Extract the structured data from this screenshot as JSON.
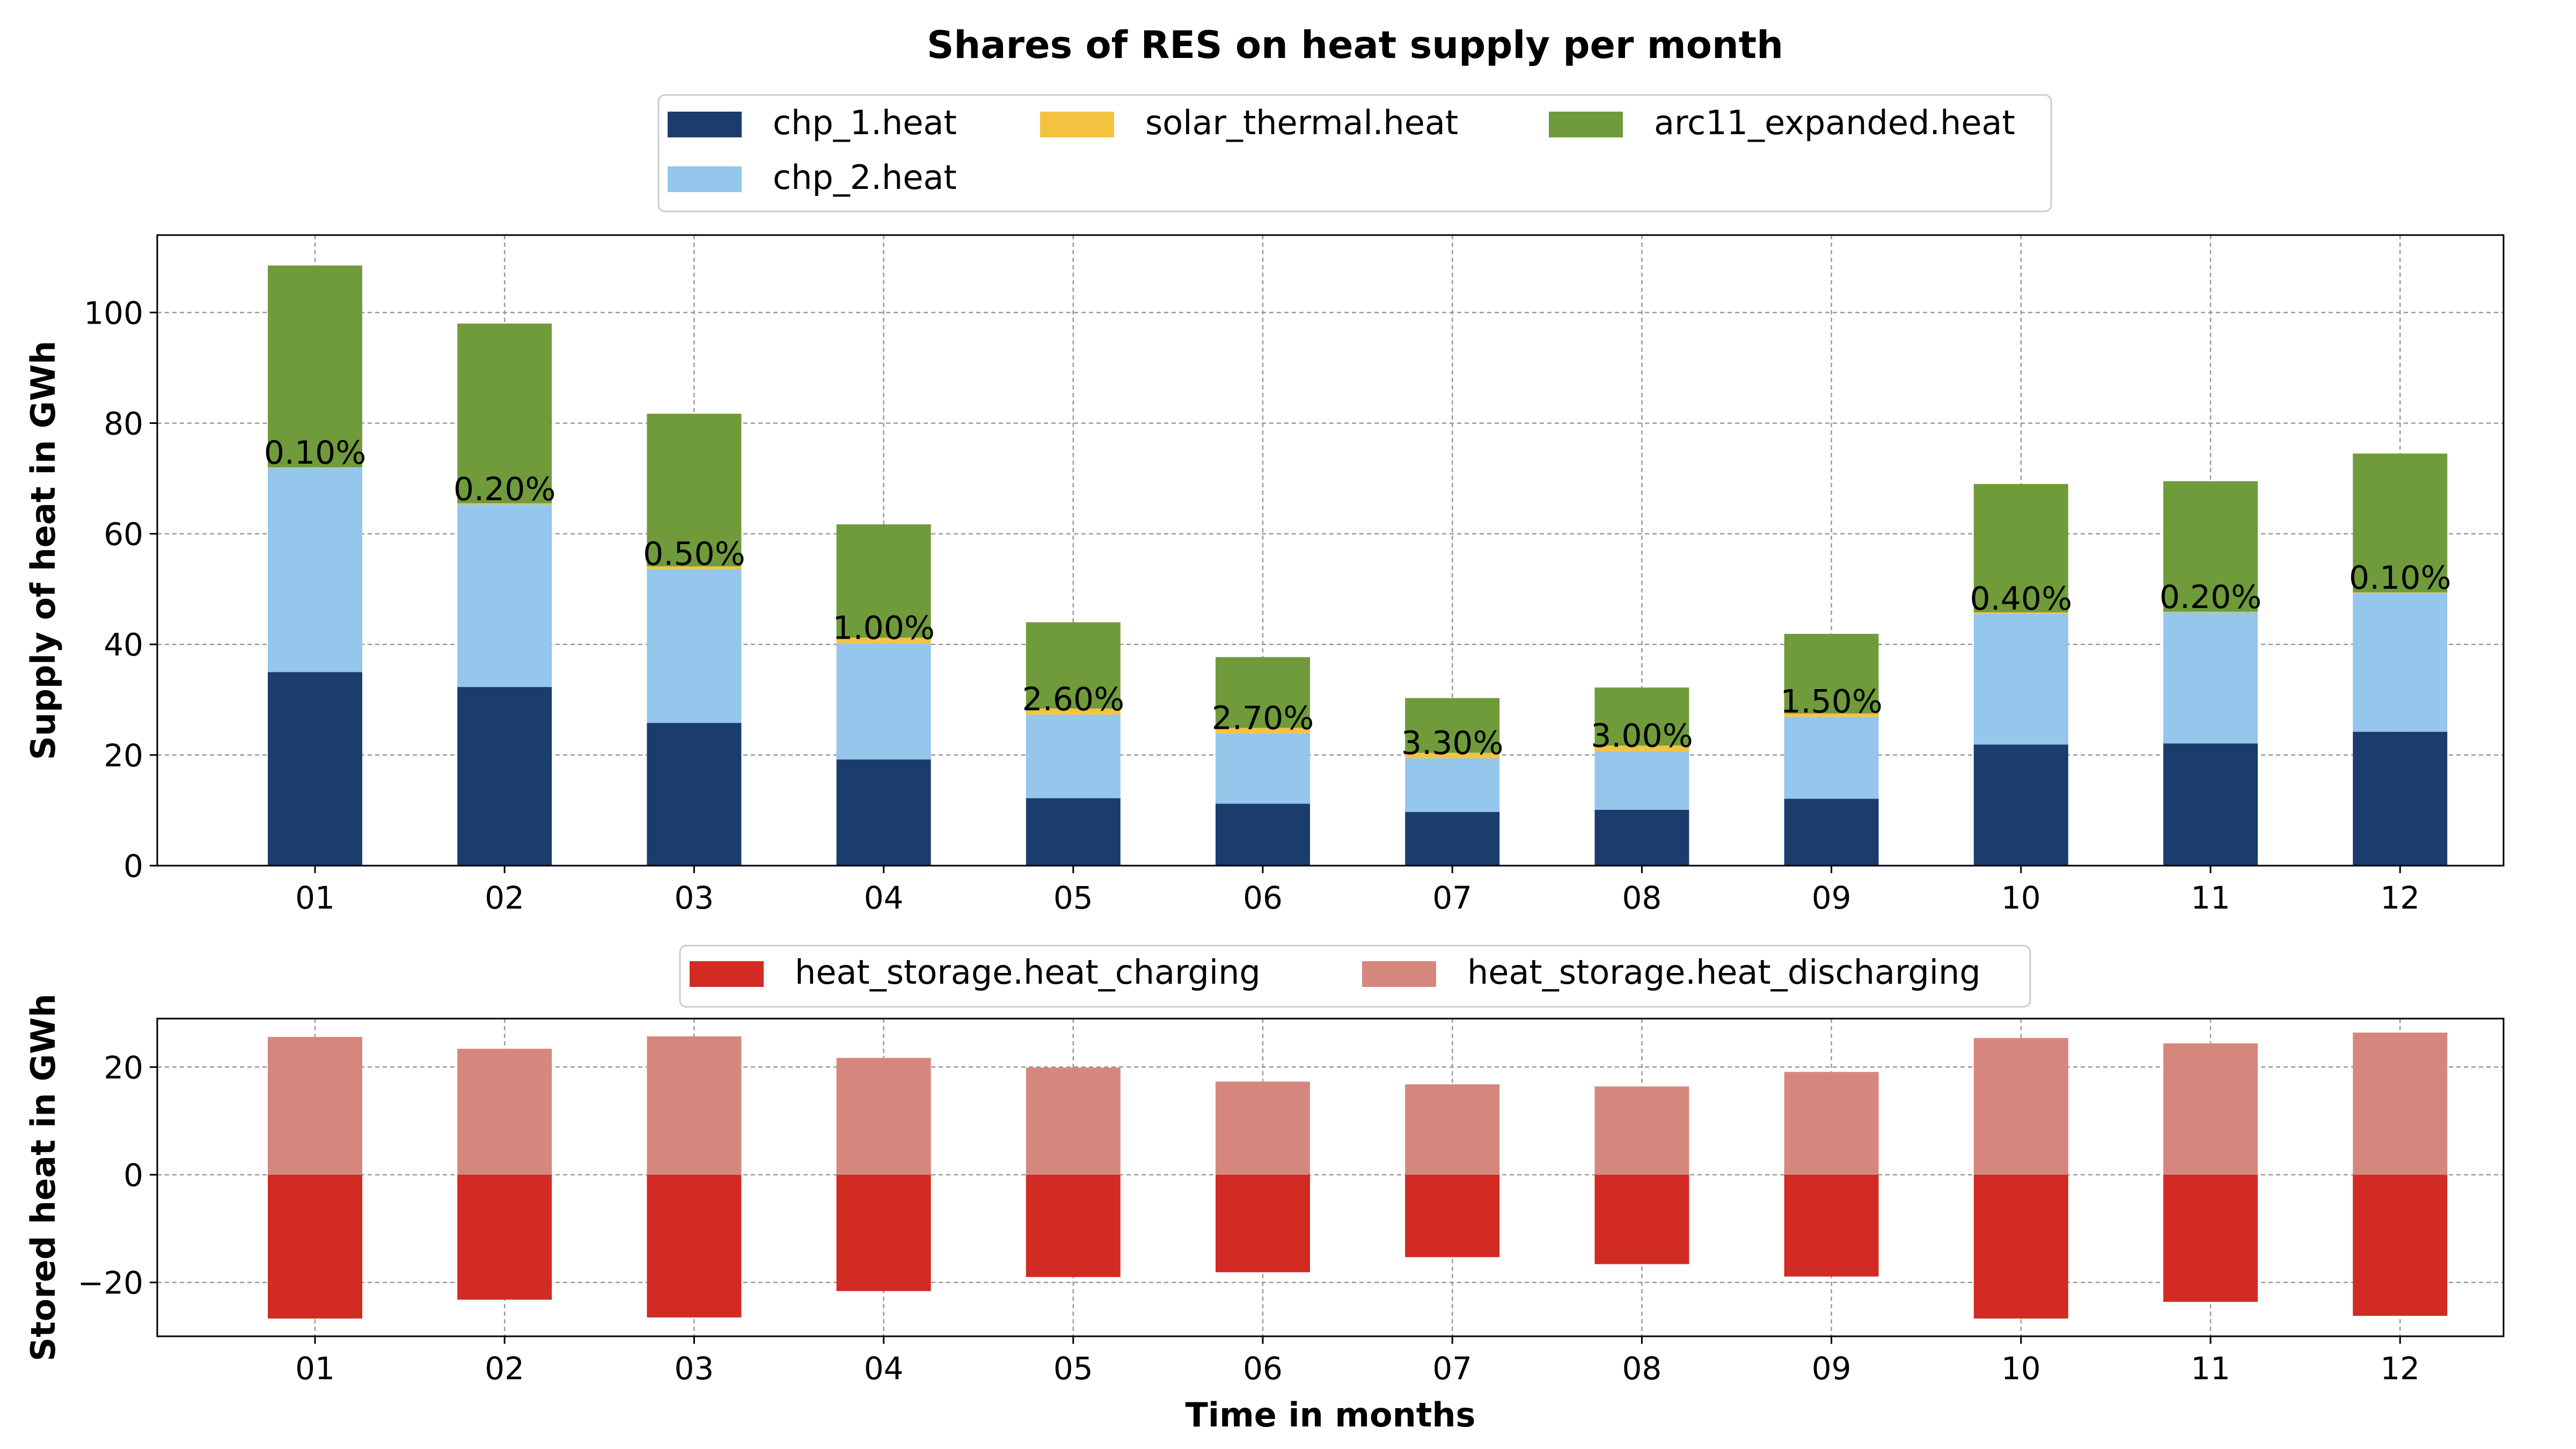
{
  "title": "Shares of RES on heat supply per month",
  "chart_data": [
    {
      "type": "bar",
      "stacked": true,
      "categories": [
        "01",
        "02",
        "03",
        "04",
        "05",
        "06",
        "07",
        "08",
        "09",
        "10",
        "11",
        "12"
      ],
      "series": [
        {
          "name": "chp_1.heat",
          "color": "#1a3d6e",
          "values": [
            35.0,
            32.3,
            25.8,
            19.2,
            12.2,
            11.2,
            9.7,
            10.1,
            12.1,
            21.9,
            22.1,
            24.2
          ]
        },
        {
          "name": "chp_2.heat",
          "color": "#95c6ec",
          "values": [
            36.9,
            33.0,
            27.8,
            21.0,
            15.1,
            12.7,
            9.7,
            10.6,
            14.8,
            23.6,
            23.7,
            25.1
          ]
        },
        {
          "name": "solar_thermal.heat",
          "color": "#f5c342",
          "values": [
            0.1,
            0.2,
            0.5,
            1.0,
            1.1,
            1.0,
            1.0,
            1.0,
            0.6,
            0.3,
            0.1,
            0.1
          ]
        },
        {
          "name": "arc11_expanded.heat",
          "color": "#709b3b",
          "values": [
            36.5,
            32.5,
            27.6,
            20.5,
            15.6,
            12.8,
            9.9,
            10.5,
            14.4,
            23.2,
            23.6,
            25.1
          ]
        }
      ],
      "bar_labels": [
        "0.10%",
        "0.20%",
        "0.50%",
        "1.00%",
        "2.60%",
        "2.70%",
        "3.30%",
        "3.00%",
        "1.50%",
        "0.40%",
        "0.20%",
        "0.10%"
      ],
      "ylabel": "Supply of heat in GWh",
      "yticks": [
        0,
        20,
        40,
        60,
        80,
        100
      ],
      "ylim": [
        0,
        114
      ],
      "grid": true,
      "legend_placement": "top-center"
    },
    {
      "type": "bar",
      "categories": [
        "01",
        "02",
        "03",
        "04",
        "05",
        "06",
        "07",
        "08",
        "09",
        "10",
        "11",
        "12"
      ],
      "series": [
        {
          "name": "heat_storage.heat_charging",
          "color": "#d12b24",
          "values": [
            -26.7,
            -23.2,
            -26.5,
            -21.6,
            -19.0,
            -18.1,
            -15.3,
            -16.6,
            -18.9,
            -26.7,
            -23.6,
            -26.2
          ]
        },
        {
          "name": "heat_storage.heat_discharging",
          "color": "#d6877d",
          "values": [
            25.6,
            23.4,
            25.7,
            21.7,
            19.9,
            17.3,
            16.8,
            16.4,
            19.1,
            25.4,
            24.4,
            26.4
          ]
        }
      ],
      "xlabel": "Time in months",
      "ylabel": "Stored heat in GWh",
      "yticks": [
        -20,
        0,
        20
      ],
      "ylim": [
        -30,
        29
      ],
      "grid": true,
      "legend_placement": "top-center"
    }
  ]
}
